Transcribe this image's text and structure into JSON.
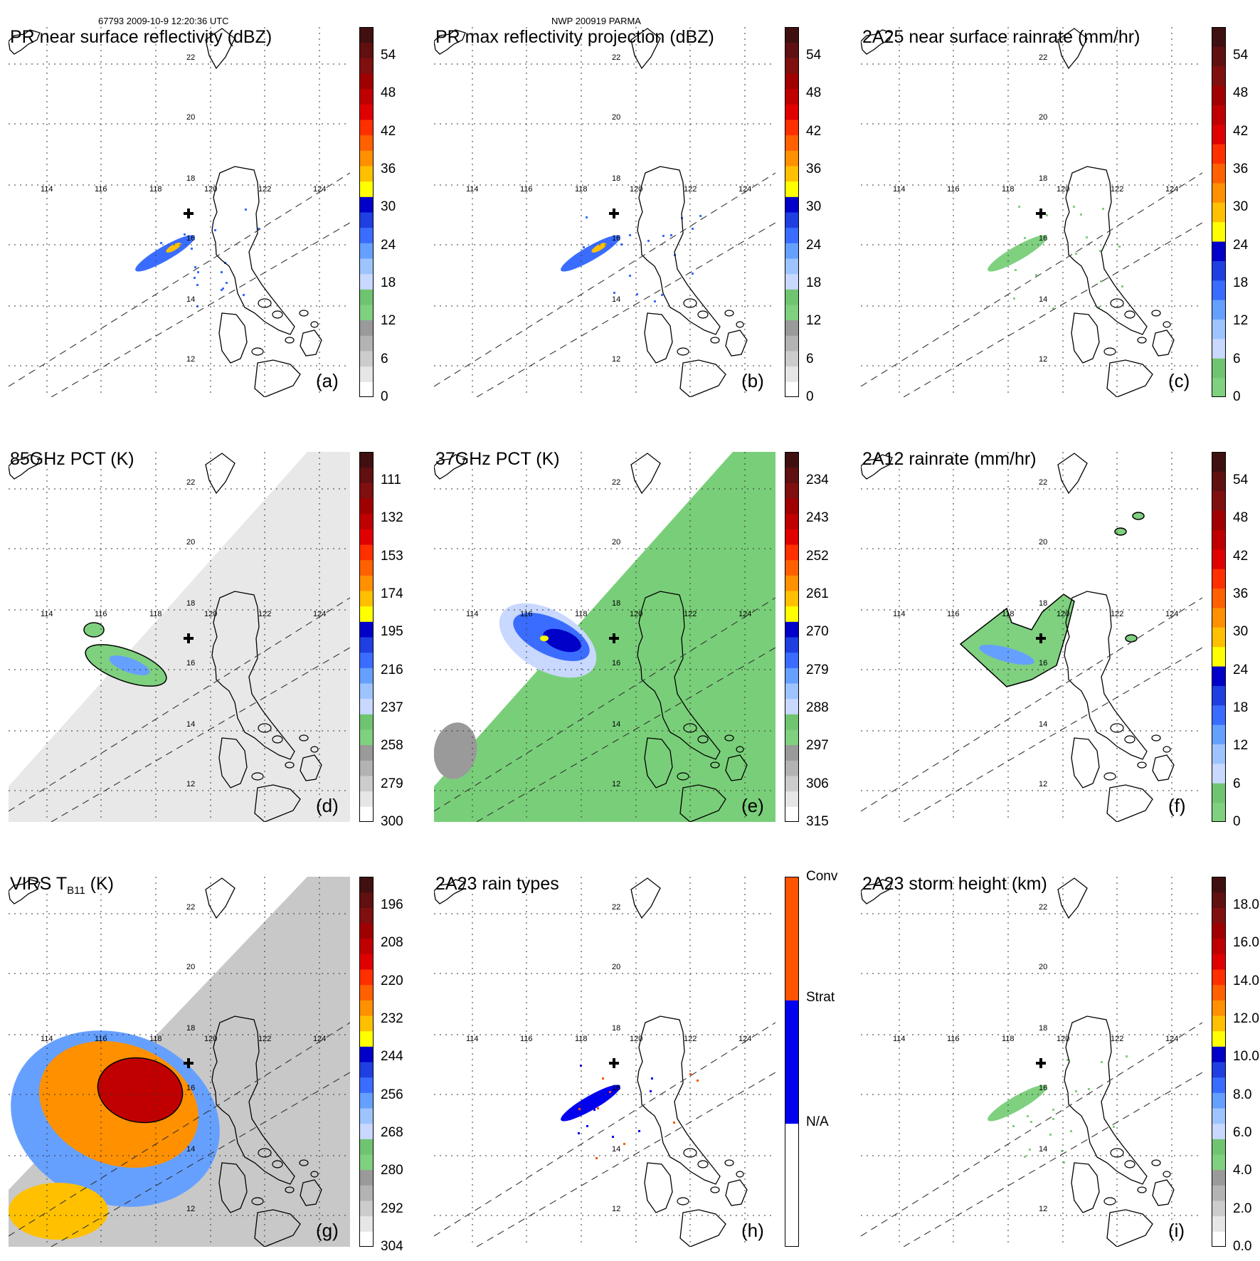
{
  "header": {
    "left": "67793 2009-10-9 12:20:36 UTC",
    "center": "NWP 200919 PARMA"
  },
  "map": {
    "lon_labels": [
      "114",
      "116",
      "118",
      "120",
      "122",
      "124"
    ],
    "lat_labels": [
      "22",
      "20",
      "18",
      "16",
      "14",
      "12"
    ]
  },
  "panels": [
    {
      "id": "a",
      "title": "PR near surface reflectivity (dBZ)",
      "label": "(a)",
      "colorbar": {
        "colors": [
          "#ffffff",
          "#e6e6e6",
          "#cccccc",
          "#b3b3b3",
          "#9a9a9a",
          "#7fd07f",
          "#6fc56f",
          "#c8d8ff",
          "#9ec4ff",
          "#66a0ff",
          "#3a6dff",
          "#1f3fe0",
          "#0000c8",
          "#ffff00",
          "#ffc000",
          "#ff9000",
          "#ff6000",
          "#ff3000",
          "#e00000",
          "#c00000",
          "#a00000",
          "#801010",
          "#601010",
          "#401010"
        ],
        "ticks": [
          "54",
          "48",
          "42",
          "36",
          "30",
          "24",
          "18",
          "12",
          "6",
          "0"
        ]
      },
      "sample": {
        "swath": "pr",
        "hot": true
      }
    },
    {
      "id": "b",
      "title": "PR max reflectivity projection (dBZ)",
      "label": "(b)",
      "colorbar": {
        "colors": [
          "#ffffff",
          "#e6e6e6",
          "#cccccc",
          "#b3b3b3",
          "#9a9a9a",
          "#7fd07f",
          "#6fc56f",
          "#c8d8ff",
          "#9ec4ff",
          "#66a0ff",
          "#3a6dff",
          "#1f3fe0",
          "#0000c8",
          "#ffff00",
          "#ffc000",
          "#ff9000",
          "#ff6000",
          "#ff3000",
          "#e00000",
          "#c00000",
          "#a00000",
          "#801010",
          "#601010",
          "#401010"
        ],
        "ticks": [
          "54",
          "48",
          "42",
          "36",
          "30",
          "24",
          "18",
          "12",
          "6",
          "0"
        ]
      },
      "sample": {
        "swath": "pr",
        "hot": true
      }
    },
    {
      "id": "c",
      "title": "2A25 near surface rainrate (mm/hr)",
      "label": "(c)",
      "colorbar": {
        "colors": [
          "#7fd07f",
          "#6fc56f",
          "#c8d8ff",
          "#9ec4ff",
          "#66a0ff",
          "#3a6dff",
          "#1f3fe0",
          "#0000c8",
          "#ffff00",
          "#ffc000",
          "#ff9000",
          "#ff6000",
          "#ff3000",
          "#e00000",
          "#c00000",
          "#a00000",
          "#801010",
          "#601010",
          "#401010"
        ],
        "ticks": [
          "54",
          "48",
          "42",
          "36",
          "30",
          "24",
          "18",
          "12",
          "6",
          "0"
        ]
      },
      "sample": {
        "swath": "pr",
        "hot": false
      }
    },
    {
      "id": "d",
      "title": "85GHz PCT (K)",
      "label": "(d)",
      "colorbar": {
        "colors": [
          "#ffffff",
          "#e6e6e6",
          "#cccccc",
          "#b3b3b3",
          "#9a9a9a",
          "#7fd07f",
          "#6fc56f",
          "#c8d8ff",
          "#9ec4ff",
          "#66a0ff",
          "#3a6dff",
          "#1f3fe0",
          "#0000c8",
          "#ffff00",
          "#ffc000",
          "#ff9000",
          "#ff6000",
          "#ff3000",
          "#e00000",
          "#c00000",
          "#a00000",
          "#801010",
          "#601010",
          "#401010"
        ],
        "ticks": [
          "111",
          "132",
          "153",
          "174",
          "195",
          "216",
          "237",
          "258",
          "279",
          "300"
        ]
      },
      "sample": {
        "swath": "tmi",
        "fill": "#e8e8e8"
      }
    },
    {
      "id": "e",
      "title": "37GHz PCT (K)",
      "label": "(e)",
      "colorbar": {
        "colors": [
          "#ffffff",
          "#e6e6e6",
          "#cccccc",
          "#b3b3b3",
          "#9a9a9a",
          "#7fd07f",
          "#6fc56f",
          "#c8d8ff",
          "#9ec4ff",
          "#66a0ff",
          "#3a6dff",
          "#1f3fe0",
          "#0000c8",
          "#ffff00",
          "#ffc000",
          "#ff9000",
          "#ff6000",
          "#ff3000",
          "#e00000",
          "#c00000",
          "#a00000",
          "#801010",
          "#601010",
          "#401010"
        ],
        "ticks": [
          "234",
          "243",
          "252",
          "261",
          "270",
          "279",
          "288",
          "297",
          "306",
          "315"
        ]
      },
      "sample": {
        "swath": "tmi",
        "fill": "#79cf79"
      }
    },
    {
      "id": "f",
      "title": "2A12 rainrate (mm/hr)",
      "label": "(f)",
      "colorbar": {
        "colors": [
          "#7fd07f",
          "#6fc56f",
          "#c8d8ff",
          "#9ec4ff",
          "#66a0ff",
          "#3a6dff",
          "#1f3fe0",
          "#0000c8",
          "#ffff00",
          "#ffc000",
          "#ff9000",
          "#ff6000",
          "#ff3000",
          "#e00000",
          "#c00000",
          "#a00000",
          "#801010",
          "#601010",
          "#401010"
        ],
        "ticks": [
          "54",
          "48",
          "42",
          "36",
          "30",
          "24",
          "18",
          "12",
          "6",
          "0"
        ]
      },
      "sample": {
        "swath": "tmi2a12"
      }
    },
    {
      "id": "g",
      "title": "VIRS T",
      "title_sub": "B11",
      "title_tail": " (K)",
      "label": "(g)",
      "colorbar": {
        "colors": [
          "#ffffff",
          "#e6e6e6",
          "#cccccc",
          "#b3b3b3",
          "#9a9a9a",
          "#7fd07f",
          "#6fc56f",
          "#c8d8ff",
          "#9ec4ff",
          "#66a0ff",
          "#3a6dff",
          "#1f3fe0",
          "#0000c8",
          "#ffff00",
          "#ffc000",
          "#ff9000",
          "#ff6000",
          "#ff3000",
          "#e00000",
          "#c00000",
          "#a00000",
          "#801010",
          "#601010",
          "#401010"
        ],
        "ticks": [
          "196",
          "208",
          "220",
          "232",
          "244",
          "256",
          "268",
          "280",
          "292",
          "304"
        ]
      },
      "sample": {
        "swath": "virs"
      }
    },
    {
      "id": "h",
      "title": "2A23 rain types",
      "label": "(h)",
      "colorbar": {
        "colors": [
          "#ffffff",
          "#0000ee",
          "#ff5500"
        ],
        "ticks": [
          "Conv",
          "Strat",
          "N/A"
        ]
      },
      "sample": {
        "swath": "types"
      }
    },
    {
      "id": "i",
      "title": "2A23 storm height (km)",
      "label": "(i)",
      "colorbar": {
        "colors": [
          "#ffffff",
          "#e6e6e6",
          "#cccccc",
          "#b3b3b3",
          "#9a9a9a",
          "#7fd07f",
          "#6fc56f",
          "#c8d8ff",
          "#9ec4ff",
          "#66a0ff",
          "#3a6dff",
          "#1f3fe0",
          "#0000c8",
          "#ffff00",
          "#ffc000",
          "#ff9000",
          "#ff6000",
          "#ff3000",
          "#e00000",
          "#c00000",
          "#a00000",
          "#801010",
          "#601010",
          "#401010"
        ],
        "ticks": [
          "18.0",
          "16.0",
          "14.0",
          "12.0",
          "10.0",
          "8.0",
          "6.0",
          "4.0",
          "2.0",
          "0.0"
        ]
      },
      "sample": {
        "swath": "pr",
        "hot": false
      }
    }
  ]
}
